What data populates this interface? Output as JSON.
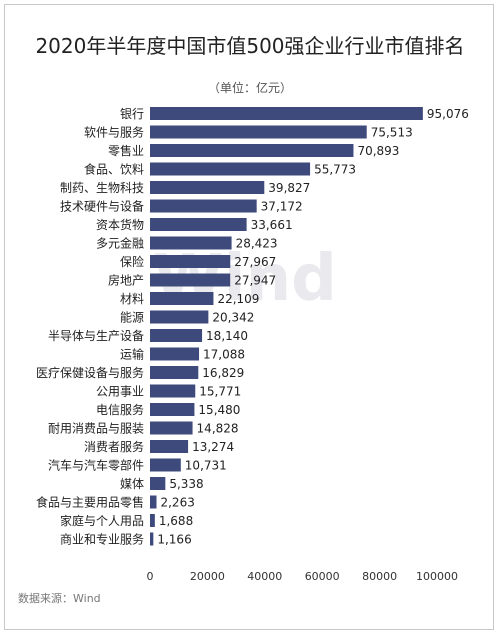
{
  "title": "2020年半年度中国市值500强企业行业市值排名",
  "unit_label": "（单位：亿元）",
  "source_label": "数据来源：Wind",
  "watermark_text": "Wind",
  "colors": {
    "bar": "#3f4a7c",
    "axis_text": "#333333",
    "label_text": "#222222"
  },
  "chart_data": {
    "type": "bar",
    "orientation": "horizontal",
    "title": "2020年半年度中国市值500强企业行业市值排名",
    "unit": "（单位：亿元）",
    "xlim": [
      0,
      100000
    ],
    "x_ticks": [
      0,
      20000,
      40000,
      60000,
      80000,
      100000
    ],
    "grid": false,
    "categories": [
      "银行",
      "软件与服务",
      "零售业",
      "食品、饮料",
      "制药、生物科技",
      "技术硬件与设备",
      "资本货物",
      "多元金融",
      "保险",
      "房地产",
      "材料",
      "能源",
      "半导体与生产设备",
      "运输",
      "医疗保健设备与服务",
      "公用事业",
      "电信服务",
      "耐用消费品与服装",
      "消费者服务",
      "汽车与汽车零部件",
      "媒体",
      "食品与主要用品零售",
      "家庭与个人用品",
      "商业和专业服务"
    ],
    "values": [
      95076,
      75513,
      70893,
      55773,
      39827,
      37172,
      33661,
      28423,
      27967,
      27947,
      22109,
      20342,
      18140,
      17088,
      16829,
      15771,
      15480,
      14828,
      13274,
      10731,
      5338,
      2263,
      1688,
      1166
    ],
    "value_labels": [
      "95,076",
      "75,513",
      "70,893",
      "55,773",
      "39,827",
      "37,172",
      "33,661",
      "28,423",
      "27,967",
      "27,947",
      "22,109",
      "20,342",
      "18,140",
      "17,088",
      "16,829",
      "15,771",
      "15,480",
      "14,828",
      "13,274",
      "10,731",
      "5,338",
      "2,263",
      "1,688",
      "1,166"
    ]
  }
}
